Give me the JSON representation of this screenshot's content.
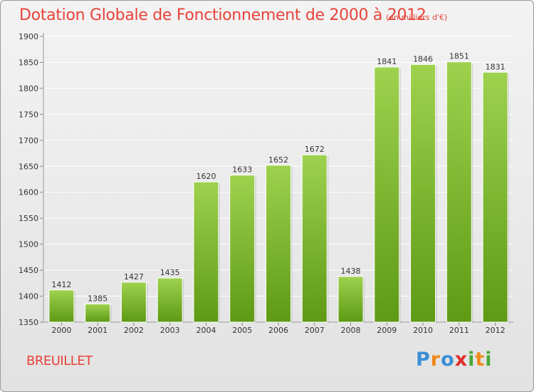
{
  "header": {
    "title": "Dotation Globale de Fonctionnement de 2000 à 2012",
    "unit": "(en milliers d'€)"
  },
  "footer": {
    "commune": "BREUILLET",
    "logo_text": "Proxiti"
  },
  "colors": {
    "title": "#e8423a",
    "bar_top": "#9ed24e",
    "bar_bottom": "#5e9a14",
    "grid": "#ffffff"
  },
  "chart_data": {
    "type": "bar",
    "title": "Dotation Globale de Fonctionnement de 2000 à 2012",
    "subtitle": "(en milliers d'€)",
    "xlabel": "",
    "ylabel": "",
    "categories": [
      "2000",
      "2001",
      "2002",
      "2003",
      "2004",
      "2005",
      "2006",
      "2007",
      "2008",
      "2009",
      "2010",
      "2011",
      "2012"
    ],
    "values": [
      1412,
      1385,
      1427,
      1435,
      1620,
      1633,
      1652,
      1672,
      1438,
      1841,
      1846,
      1851,
      1831
    ],
    "ylim": [
      1350,
      1900
    ],
    "yticks": [
      1350,
      1400,
      1450,
      1500,
      1550,
      1600,
      1650,
      1700,
      1750,
      1800,
      1850,
      1900
    ],
    "grid": true,
    "legend": "none"
  }
}
